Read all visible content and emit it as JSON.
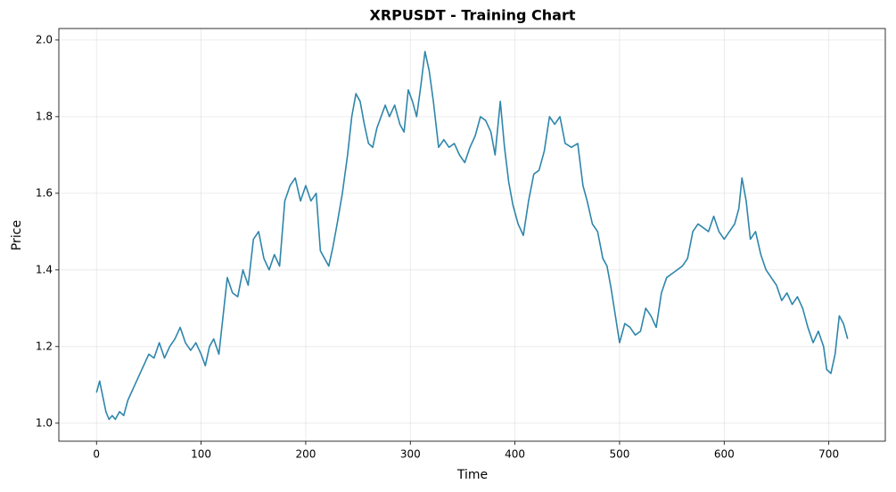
{
  "chart_data": {
    "type": "line",
    "title": "XRPUSDT - Training Chart",
    "xlabel": "Time",
    "ylabel": "Price",
    "x": [
      0,
      3,
      6,
      9,
      12,
      15,
      18,
      22,
      26,
      30,
      35,
      40,
      45,
      50,
      55,
      60,
      65,
      70,
      75,
      80,
      85,
      90,
      95,
      100,
      104,
      108,
      112,
      117,
      121,
      125,
      130,
      135,
      140,
      145,
      150,
      155,
      160,
      165,
      170,
      175,
      180,
      185,
      190,
      195,
      200,
      205,
      210,
      214,
      218,
      222,
      226,
      230,
      235,
      240,
      244,
      248,
      252,
      256,
      260,
      264,
      268,
      272,
      276,
      280,
      285,
      290,
      294,
      298,
      302,
      306,
      310,
      314,
      318,
      322,
      327,
      332,
      337,
      342,
      347,
      352,
      357,
      362,
      367,
      372,
      377,
      381,
      386,
      390,
      394,
      398,
      403,
      408,
      413,
      418,
      423,
      428,
      433,
      438,
      443,
      448,
      454,
      460,
      465,
      469,
      474,
      479,
      484,
      488,
      492,
      496,
      500,
      505,
      510,
      515,
      520,
      525,
      530,
      535,
      540,
      545,
      550,
      555,
      560,
      565,
      570,
      575,
      580,
      585,
      590,
      595,
      600,
      605,
      610,
      614,
      617,
      621,
      625,
      630,
      635,
      640,
      645,
      650,
      655,
      660,
      665,
      670,
      675,
      680,
      685,
      690,
      695,
      698,
      702,
      706,
      710,
      714,
      718
    ],
    "series": [
      {
        "name": "XRPUSDT",
        "color": "#2e86ab",
        "values": [
          1.08,
          1.11,
          1.07,
          1.03,
          1.01,
          1.02,
          1.01,
          1.03,
          1.02,
          1.06,
          1.09,
          1.12,
          1.15,
          1.18,
          1.17,
          1.21,
          1.17,
          1.2,
          1.22,
          1.25,
          1.21,
          1.19,
          1.21,
          1.18,
          1.15,
          1.2,
          1.22,
          1.18,
          1.28,
          1.38,
          1.34,
          1.33,
          1.4,
          1.36,
          1.48,
          1.5,
          1.43,
          1.4,
          1.44,
          1.41,
          1.58,
          1.62,
          1.64,
          1.58,
          1.62,
          1.58,
          1.6,
          1.45,
          1.43,
          1.41,
          1.46,
          1.52,
          1.6,
          1.7,
          1.8,
          1.86,
          1.84,
          1.78,
          1.73,
          1.72,
          1.77,
          1.8,
          1.83,
          1.8,
          1.83,
          1.78,
          1.76,
          1.87,
          1.84,
          1.8,
          1.88,
          1.97,
          1.92,
          1.84,
          1.72,
          1.74,
          1.72,
          1.73,
          1.7,
          1.68,
          1.72,
          1.75,
          1.8,
          1.79,
          1.76,
          1.7,
          1.84,
          1.72,
          1.63,
          1.57,
          1.52,
          1.49,
          1.58,
          1.65,
          1.66,
          1.71,
          1.8,
          1.78,
          1.8,
          1.73,
          1.72,
          1.73,
          1.62,
          1.58,
          1.52,
          1.5,
          1.43,
          1.41,
          1.35,
          1.28,
          1.21,
          1.26,
          1.25,
          1.23,
          1.24,
          1.3,
          1.28,
          1.25,
          1.34,
          1.38,
          1.39,
          1.4,
          1.41,
          1.43,
          1.5,
          1.52,
          1.51,
          1.5,
          1.54,
          1.5,
          1.48,
          1.5,
          1.52,
          1.56,
          1.64,
          1.58,
          1.48,
          1.5,
          1.44,
          1.4,
          1.38,
          1.36,
          1.32,
          1.34,
          1.31,
          1.33,
          1.3,
          1.25,
          1.21,
          1.24,
          1.2,
          1.14,
          1.13,
          1.18,
          1.28,
          1.26,
          1.22
        ]
      }
    ],
    "xlim": [
      -36,
      754
    ],
    "ylim": [
      0.953,
      2.03
    ],
    "xticks": [
      0,
      100,
      200,
      300,
      400,
      500,
      600,
      700
    ],
    "yticks": [
      {
        "value": 1,
        "label": "1.0"
      },
      1.2,
      1.4,
      1.6,
      1.8,
      {
        "value": 2,
        "label": "2.0"
      }
    ],
    "grid": true
  }
}
